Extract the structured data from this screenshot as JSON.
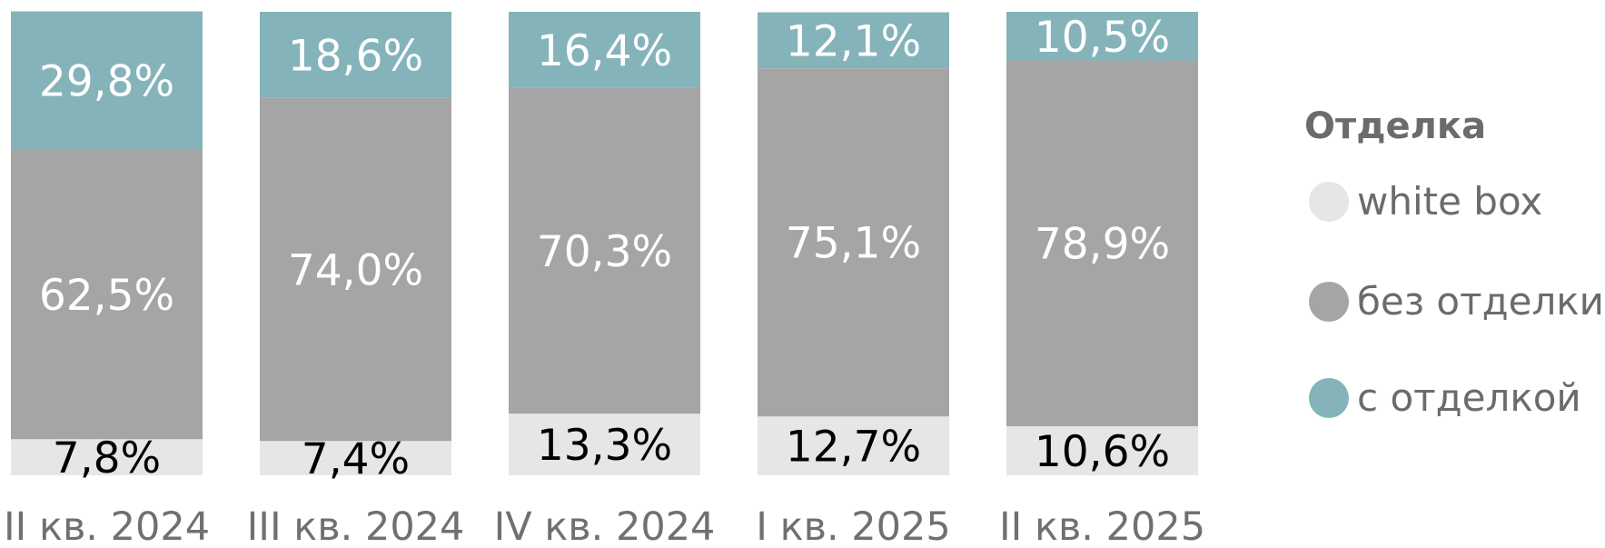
{
  "chart_data": {
    "type": "bar",
    "stacked": true,
    "categories": [
      "II кв. 2024",
      "III кв. 2024",
      "IV кв. 2024",
      "I кв. 2025",
      "II кв. 2025"
    ],
    "series": [
      {
        "name": "white box",
        "color": "#e6e6e6",
        "label_color": "#000000",
        "values": [
          7.8,
          7.4,
          13.3,
          12.7,
          10.6
        ],
        "labels": [
          "7,8%",
          "7,4%",
          "13,3%",
          "12,7%",
          "10,6%"
        ]
      },
      {
        "name": "без отделки",
        "color": "#a5a5a5",
        "label_color": "#ffffff",
        "values": [
          62.5,
          74.0,
          70.3,
          75.1,
          78.9
        ],
        "labels": [
          "62,5%",
          "74,0%",
          "70,3%",
          "75,1%",
          "78,9%"
        ]
      },
      {
        "name": "с отделкой",
        "color": "#85b3ba",
        "label_color": "#ffffff",
        "values": [
          29.8,
          18.6,
          16.4,
          12.1,
          10.5
        ],
        "labels": [
          "29,8%",
          "18,6%",
          "16,4%",
          "12,1%",
          "10,5%"
        ]
      }
    ],
    "ylim": [
      0,
      100
    ],
    "legend": {
      "title": "Отделка",
      "position": "right"
    },
    "grid": false
  }
}
